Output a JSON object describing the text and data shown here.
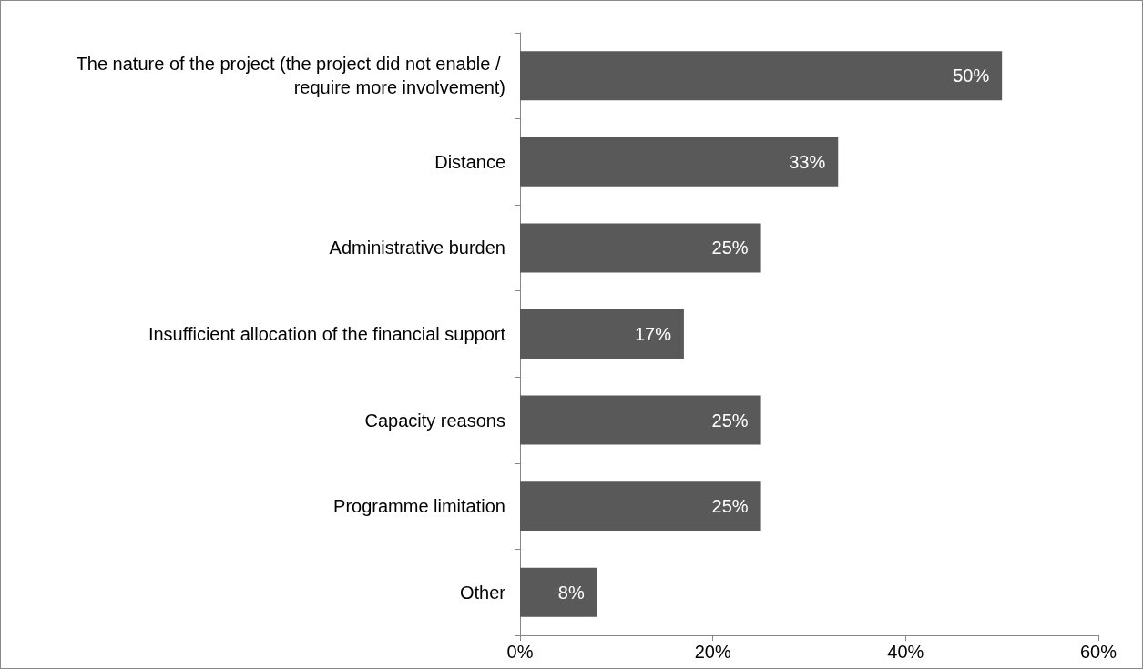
{
  "chart_data": {
    "type": "bar",
    "orientation": "horizontal",
    "categories": [
      "The nature of the project (the project did not enable / require more involvement)",
      "Distance",
      "Administrative burden",
      "Insufficient allocation of the financial support",
      "Capacity reasons",
      "Programme limitation",
      "Other"
    ],
    "values": [
      50,
      33,
      25,
      17,
      25,
      25,
      8
    ],
    "value_labels": [
      "50%",
      "33%",
      "25%",
      "17%",
      "25%",
      "25%",
      "8%"
    ],
    "color": "#595959",
    "xlim": [
      0,
      60
    ],
    "xticks": [
      {
        "value": 0,
        "label": "0%"
      },
      {
        "value": 20,
        "label": "20%"
      },
      {
        "value": 40,
        "label": "40%"
      },
      {
        "value": 60,
        "label": "60%"
      }
    ],
    "grid": false
  }
}
